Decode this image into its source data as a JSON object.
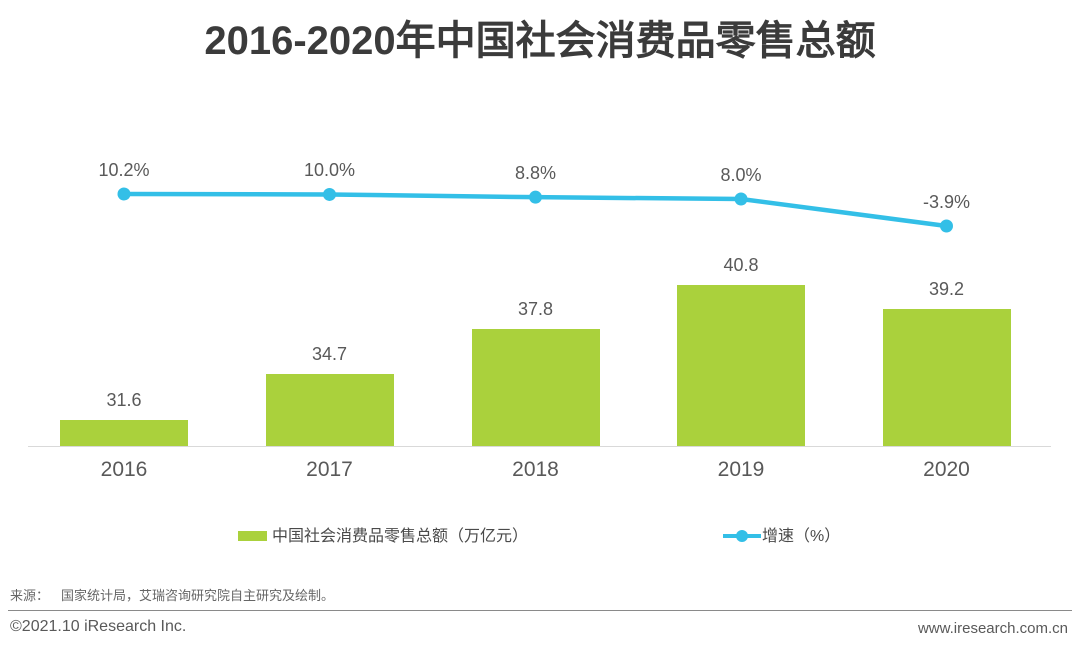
{
  "title": "2016-2020年中国社会消费品零售总额",
  "chart_data": {
    "type": "bar",
    "categories": [
      "2016",
      "2017",
      "2018",
      "2019",
      "2020"
    ],
    "series": [
      {
        "name": "中国社会消费品零售总额（万亿元）",
        "type": "bar",
        "values": [
          31.6,
          34.7,
          37.8,
          40.8,
          39.2
        ],
        "labels": [
          "31.6",
          "34.7",
          "37.8",
          "40.8",
          "39.2"
        ],
        "color": "#aad13c"
      },
      {
        "name": "增速（%）",
        "type": "line",
        "values": [
          10.2,
          10.0,
          8.8,
          8.0,
          -3.9
        ],
        "labels": [
          "10.2%",
          "10.0%",
          "8.8%",
          "8.0%",
          "-3.9%"
        ],
        "color": "#33bfe7"
      }
    ],
    "title": "2016-2020年中国社会消费品零售总额",
    "xlabel": "",
    "ylabel": "",
    "grid": false,
    "legend_position": "bottom",
    "value_labels_shown": true
  },
  "footer": {
    "source_label": "来源：",
    "source_body": "国家统计局，艾瑞咨询研究院自主研究及绘制。",
    "copyright": "©2021.10 iResearch Inc.",
    "website": "www.iresearch.com.cn"
  },
  "colors": {
    "bar": "#aad13c",
    "line": "#33bfe7",
    "title_text": "#3b3b3b",
    "label_text": "#595959",
    "axis_line": "#d9d9d9",
    "divider": "#8a8a8a"
  }
}
